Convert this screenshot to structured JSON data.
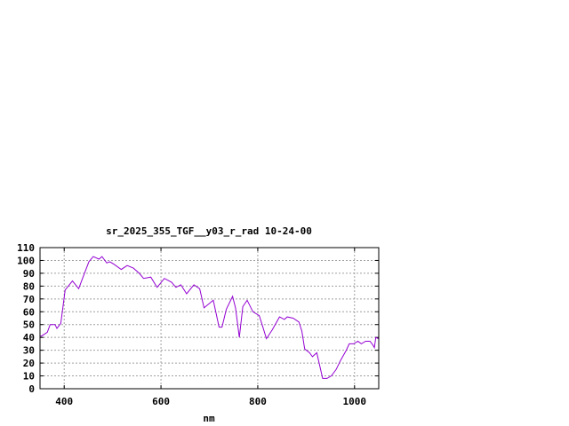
{
  "chart_data": {
    "type": "line",
    "title": "sr_2025_355_TGF__y03_r_rad 10-24-00",
    "xlabel": "nm",
    "ylabel": "",
    "xlim": [
      350,
      1050
    ],
    "ylim": [
      0,
      110
    ],
    "xticks": [
      400,
      600,
      800,
      1000
    ],
    "yticks": [
      0,
      10,
      20,
      30,
      40,
      50,
      60,
      70,
      80,
      90,
      100,
      110
    ],
    "grid": true,
    "series": [
      {
        "color": "#9400d3",
        "x": [
          350,
          353,
          365,
          371,
          381,
          385,
          393,
          402,
          417,
          430,
          439,
          451,
          460,
          472,
          478,
          488,
          494,
          503,
          518,
          530,
          543,
          555,
          564,
          579,
          592,
          607,
          622,
          631,
          641,
          653,
          668,
          680,
          689,
          708,
          720,
          726,
          735,
          748,
          754,
          762,
          769,
          778,
          790,
          803,
          809,
          818,
          830,
          845,
          855,
          861,
          873,
          885,
          891,
          897,
          907,
          913,
          922,
          934,
          943,
          952,
          962,
          971,
          983,
          989,
          998,
          1007,
          1014,
          1023,
          1032,
          1038,
          1041,
          1044,
          1049
        ],
        "y": [
          41,
          41,
          44,
          50,
          50,
          47,
          51,
          77,
          84,
          78,
          87,
          99,
          103,
          101,
          103,
          98,
          99,
          97,
          93,
          96,
          94,
          90,
          86,
          87,
          79,
          86,
          83,
          79,
          81,
          74,
          81,
          78,
          63,
          69,
          48,
          48,
          62,
          72,
          63,
          40,
          64,
          69,
          60,
          57,
          50,
          39,
          46,
          56,
          54,
          56,
          55,
          52,
          45,
          31,
          28,
          25,
          28,
          8,
          8,
          10,
          15,
          22,
          30,
          35,
          35,
          37,
          35,
          37,
          37,
          34,
          32,
          40,
          39
        ]
      }
    ]
  }
}
